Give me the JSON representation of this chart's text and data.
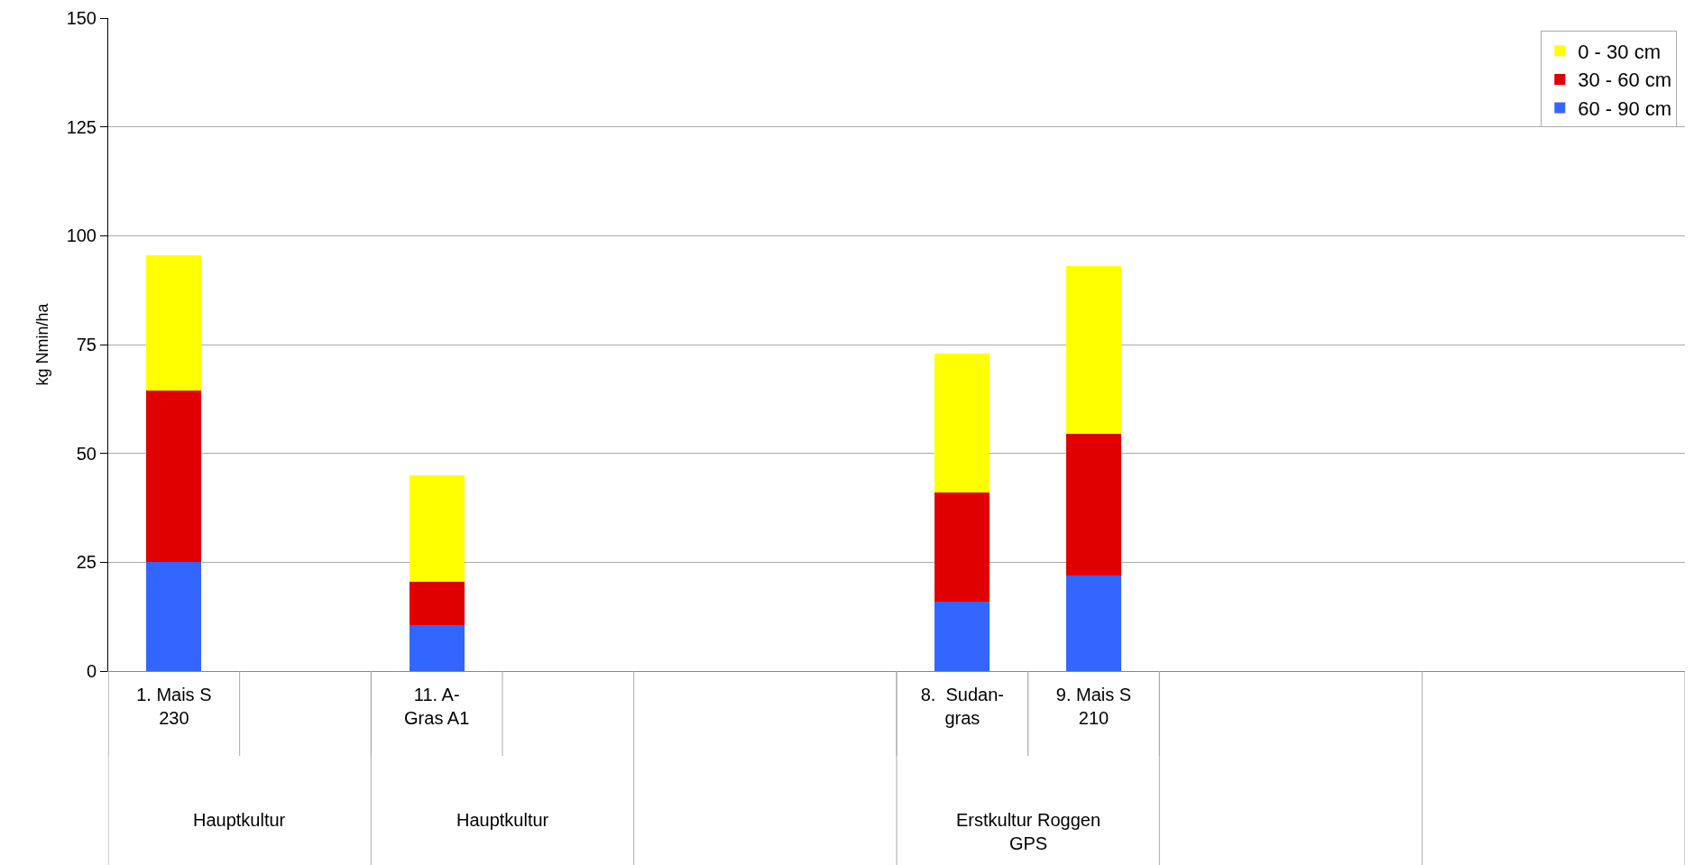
{
  "chart_data": {
    "type": "bar",
    "stacked": true,
    "ylabel": "kg Nmin/ha",
    "categories": [
      "1. Mais S\n230",
      null,
      "11. A-\nGras A1",
      null,
      null,
      null,
      "8.  Sudan-\ngras",
      "9. Mais S\n210",
      null,
      null,
      null,
      null
    ],
    "series": [
      {
        "name": "60 - 90 cm",
        "color": "#3366ff",
        "values": [
          25,
          null,
          10.5,
          null,
          null,
          null,
          16,
          22,
          null,
          null,
          null,
          null
        ]
      },
      {
        "name": "30 - 60 cm",
        "color": "#e00000",
        "values": [
          39.5,
          null,
          10,
          null,
          null,
          null,
          25,
          32.5,
          null,
          null,
          null,
          null
        ]
      },
      {
        "name": "0 - 30 cm",
        "color": "#ffff00",
        "values": [
          31,
          null,
          24.5,
          null,
          null,
          null,
          32,
          38.5,
          null,
          null,
          null,
          null
        ]
      }
    ],
    "annotations": [
      "Hauptkultur",
      "Hauptkultur",
      "Erstkultur Roggen\nGPS"
    ],
    "ylim": [
      0,
      150
    ],
    "yticks": [
      0,
      25,
      50,
      75,
      100,
      125,
      150
    ],
    "grid": "y",
    "legend": "top right"
  }
}
